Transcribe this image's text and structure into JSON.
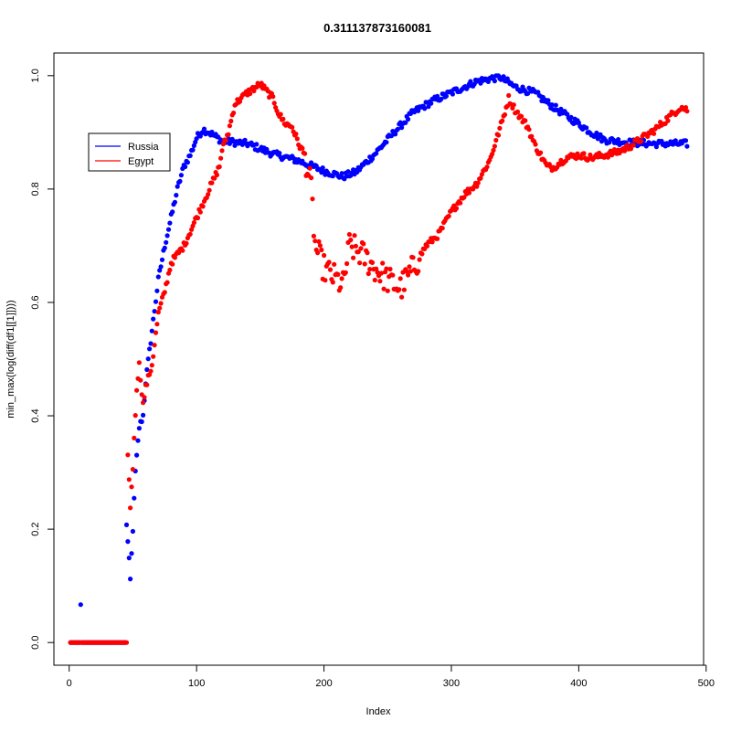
{
  "chart_data": {
    "type": "scatter",
    "title": "0.311137873160081",
    "xlabel": "Index",
    "ylabel": "min_max(log(diff(df1[[1]])))",
    "xlim": [
      -12,
      498
    ],
    "ylim": [
      -0.04,
      1.04
    ],
    "x_ticks": [
      0,
      100,
      200,
      300,
      400,
      500
    ],
    "y_ticks": [
      0.0,
      0.2,
      0.4,
      0.6,
      0.8,
      1.0
    ],
    "x_tick_labels": [
      "0",
      "100",
      "200",
      "300",
      "400",
      "500"
    ],
    "y_tick_labels": [
      "0.0",
      "0.2",
      "0.4",
      "0.6",
      "0.8",
      "1.0"
    ],
    "legend": {
      "position": "top-left",
      "entries": [
        {
          "name": "Russia",
          "color": "#0000ff"
        },
        {
          "name": "Egypt",
          "color": "#ff0000"
        }
      ]
    },
    "series": [
      {
        "name": "Russia",
        "color": "#0000ff",
        "n": 485,
        "knots": [
          [
            1,
            0
          ],
          [
            8,
            0
          ],
          [
            9,
            0.065
          ],
          [
            10,
            0
          ],
          [
            44,
            0
          ],
          [
            45,
            0.21
          ],
          [
            48,
            0.11
          ],
          [
            50,
            0.2
          ],
          [
            52,
            0.3
          ],
          [
            55,
            0.38
          ],
          [
            58,
            0.4
          ],
          [
            60,
            0.46
          ],
          [
            65,
            0.55
          ],
          [
            70,
            0.64
          ],
          [
            75,
            0.7
          ],
          [
            80,
            0.75
          ],
          [
            85,
            0.8
          ],
          [
            90,
            0.84
          ],
          [
            95,
            0.86
          ],
          [
            100,
            0.89
          ],
          [
            105,
            0.905
          ],
          [
            110,
            0.9
          ],
          [
            120,
            0.885
          ],
          [
            140,
            0.88
          ],
          [
            160,
            0.862
          ],
          [
            180,
            0.85
          ],
          [
            200,
            0.832
          ],
          [
            215,
            0.822
          ],
          [
            225,
            0.83
          ],
          [
            240,
            0.862
          ],
          [
            255,
            0.9
          ],
          [
            270,
            0.935
          ],
          [
            285,
            0.955
          ],
          [
            300,
            0.97
          ],
          [
            320,
            0.99
          ],
          [
            338,
            0.998
          ],
          [
            350,
            0.98
          ],
          [
            365,
            0.97
          ],
          [
            380,
            0.945
          ],
          [
            400,
            0.915
          ],
          [
            410,
            0.9
          ],
          [
            420,
            0.887
          ],
          [
            440,
            0.882
          ],
          [
            460,
            0.88
          ],
          [
            485,
            0.88
          ]
        ]
      },
      {
        "name": "Egypt",
        "color": "#ff0000",
        "n": 485,
        "knots": [
          [
            1,
            0
          ],
          [
            45,
            0
          ],
          [
            46,
            0.33
          ],
          [
            48,
            0.24
          ],
          [
            50,
            0.31
          ],
          [
            53,
            0.45
          ],
          [
            55,
            0.49
          ],
          [
            58,
            0.42
          ],
          [
            60,
            0.45
          ],
          [
            65,
            0.49
          ],
          [
            70,
            0.58
          ],
          [
            75,
            0.62
          ],
          [
            80,
            0.67
          ],
          [
            90,
            0.7
          ],
          [
            100,
            0.75
          ],
          [
            110,
            0.8
          ],
          [
            118,
            0.84
          ],
          [
            120,
            0.87
          ],
          [
            125,
            0.9
          ],
          [
            130,
            0.95
          ],
          [
            140,
            0.97
          ],
          [
            150,
            0.985
          ],
          [
            160,
            0.96
          ],
          [
            165,
            0.93
          ],
          [
            170,
            0.915
          ],
          [
            175,
            0.91
          ],
          [
            180,
            0.88
          ],
          [
            185,
            0.86
          ],
          [
            190,
            0.8
          ],
          [
            193,
            0.7
          ],
          [
            200,
            0.66
          ],
          [
            210,
            0.64
          ],
          [
            215,
            0.63
          ],
          [
            220,
            0.7
          ],
          [
            230,
            0.685
          ],
          [
            240,
            0.66
          ],
          [
            250,
            0.64
          ],
          [
            260,
            0.625
          ],
          [
            270,
            0.66
          ],
          [
            280,
            0.7
          ],
          [
            290,
            0.72
          ],
          [
            300,
            0.76
          ],
          [
            310,
            0.79
          ],
          [
            320,
            0.81
          ],
          [
            330,
            0.85
          ],
          [
            340,
            0.92
          ],
          [
            345,
            0.96
          ],
          [
            350,
            0.94
          ],
          [
            355,
            0.925
          ],
          [
            360,
            0.91
          ],
          [
            365,
            0.88
          ],
          [
            370,
            0.86
          ],
          [
            375,
            0.84
          ],
          [
            380,
            0.838
          ],
          [
            390,
            0.855
          ],
          [
            400,
            0.86
          ],
          [
            410,
            0.855
          ],
          [
            420,
            0.86
          ],
          [
            430,
            0.865
          ],
          [
            440,
            0.875
          ],
          [
            450,
            0.89
          ],
          [
            460,
            0.905
          ],
          [
            470,
            0.925
          ],
          [
            480,
            0.945
          ],
          [
            485,
            0.94
          ]
        ]
      }
    ]
  }
}
